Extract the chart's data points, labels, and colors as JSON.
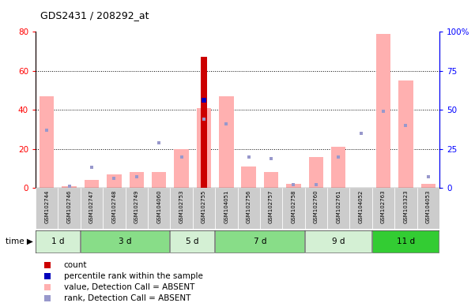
{
  "title": "GDS2431 / 208292_at",
  "samples": [
    "GSM102744",
    "GSM102746",
    "GSM102747",
    "GSM102748",
    "GSM102749",
    "GSM104060",
    "GSM102753",
    "GSM102755",
    "GSM104051",
    "GSM102756",
    "GSM102757",
    "GSM102758",
    "GSM102760",
    "GSM102761",
    "GSM104052",
    "GSM102763",
    "GSM103323",
    "GSM104053"
  ],
  "time_groups": [
    {
      "label": "1 d",
      "start": 0,
      "end": 2,
      "color": "#d4f0d4"
    },
    {
      "label": "3 d",
      "start": 2,
      "end": 6,
      "color": "#88dd88"
    },
    {
      "label": "5 d",
      "start": 6,
      "end": 8,
      "color": "#d4f0d4"
    },
    {
      "label": "7 d",
      "start": 8,
      "end": 12,
      "color": "#88dd88"
    },
    {
      "label": "9 d",
      "start": 12,
      "end": 15,
      "color": "#d4f0d4"
    },
    {
      "label": "11 d",
      "start": 15,
      "end": 18,
      "color": "#33cc33"
    }
  ],
  "value_absent": [
    47,
    1,
    4,
    7,
    8,
    8,
    20,
    41,
    47,
    11,
    8,
    2,
    16,
    21,
    0,
    79,
    55,
    2
  ],
  "rank_absent": [
    37,
    1,
    13,
    6,
    7,
    29,
    20,
    44,
    41,
    20,
    19,
    2,
    2,
    20,
    35,
    49,
    40,
    7
  ],
  "count_vals": [
    0,
    0,
    0,
    0,
    0,
    0,
    0,
    67,
    0,
    0,
    0,
    0,
    0,
    0,
    0,
    0,
    0,
    0
  ],
  "percentile_vals": [
    0,
    0,
    0,
    0,
    0,
    0,
    0,
    45,
    0,
    0,
    0,
    0,
    0,
    0,
    0,
    0,
    0,
    0
  ],
  "ylim_left": [
    0,
    80
  ],
  "ylim_right": [
    0,
    100
  ],
  "yticks_left": [
    0,
    20,
    40,
    60,
    80
  ],
  "yticks_right": [
    0,
    25,
    50,
    75,
    100
  ],
  "ytick_labels_right": [
    "0",
    "25",
    "50",
    "75",
    "100%"
  ],
  "value_absent_color": "#ffb0b0",
  "rank_absent_color": "#9898cc",
  "count_color": "#cc0000",
  "percentile_color": "#0000bb",
  "sample_bg_color": "#cccccc",
  "legend_items": [
    {
      "color": "#cc0000",
      "label": "count"
    },
    {
      "color": "#0000bb",
      "label": "percentile rank within the sample"
    },
    {
      "color": "#ffb0b0",
      "label": "value, Detection Call = ABSENT"
    },
    {
      "color": "#9898cc",
      "label": "rank, Detection Call = ABSENT"
    }
  ]
}
